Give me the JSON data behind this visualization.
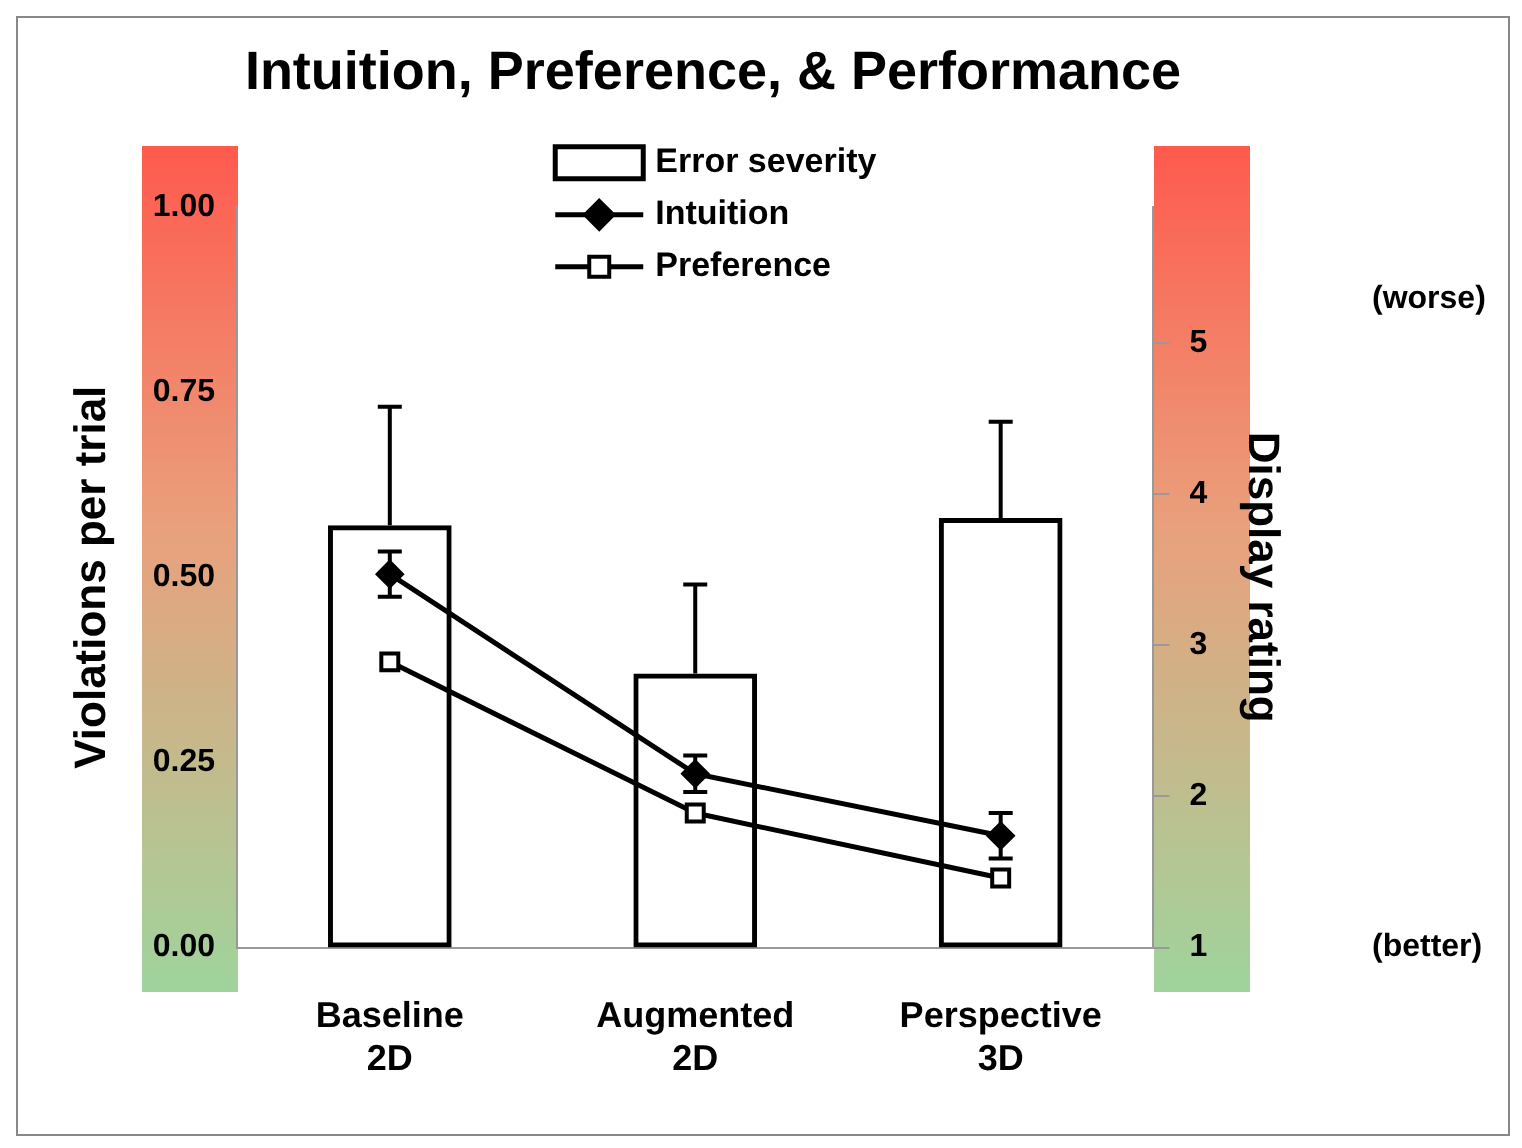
{
  "chart_data": {
    "type": "bar",
    "title": "Intuition, Preference, & Performance",
    "categories": [
      "Baseline 2D",
      "Augmented 2D",
      "Perspective 3D"
    ],
    "ylabel": "Violations per trial",
    "y2label": "Display rating",
    "ylim": [
      0,
      1
    ],
    "yticks": [
      {
        "value": 0,
        "label": "0.00"
      },
      {
        "value": 0.25,
        "label": "0.25"
      },
      {
        "value": 0.5,
        "label": "0.50"
      },
      {
        "value": 0.75,
        "label": "0.75"
      },
      {
        "value": 1,
        "label": "1.00"
      }
    ],
    "y2lim": [
      1,
      5.9
    ],
    "y2ticks": [
      1,
      2,
      3,
      4,
      5
    ],
    "series": [
      {
        "name": "Error severity",
        "color": "#000000",
        "values": [
          0.57,
          0.37,
          0.58
        ],
        "errors": [
          [
            0.57,
            0.73
          ],
          [
            0.37,
            0.49
          ],
          [
            0.58,
            0.71
          ]
        ]
      },
      {
        "name": "Intuition",
        "type": "line",
        "axis": "y2",
        "color": "#000000",
        "marker": "diamond",
        "values": [
          3.47,
          2.15,
          1.74
        ],
        "errors": [
          0.15,
          0.12,
          0.15
        ]
      },
      {
        "name": "Preference",
        "type": "line",
        "axis": "y2",
        "color": "#000000",
        "marker": "square",
        "values": [
          2.89,
          1.89,
          1.46
        ]
      }
    ],
    "annotations": [
      "(worse)",
      "(better)"
    ],
    "legend": "top",
    "grid": false
  }
}
